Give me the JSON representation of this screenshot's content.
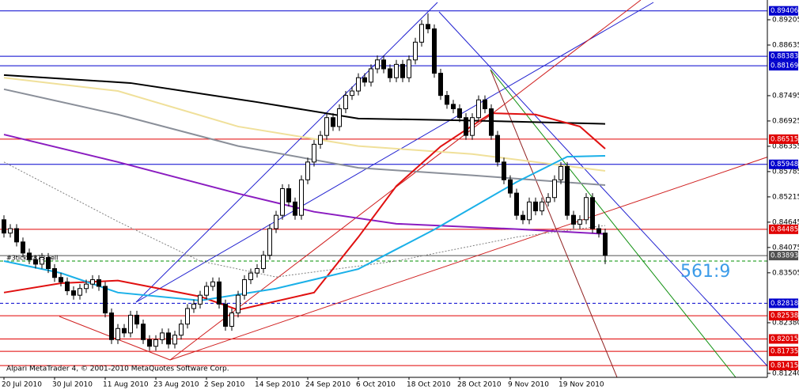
{
  "chart_data": {
    "type": "candlestick",
    "footer": "Alpari MetaTrader 4, © 2001-2010 MetaQuotes Software Corp.",
    "annotation": "561:9",
    "order_label": "#3ticket873 sell",
    "categories": [
      "20 Jul 2010",
      null,
      null,
      null,
      null,
      null,
      null,
      null,
      "30 Jul 2010",
      null,
      null,
      null,
      null,
      null,
      null,
      null,
      "11 Aug 2010",
      null,
      null,
      null,
      null,
      null,
      null,
      null,
      "23 Aug 2010",
      null,
      null,
      null,
      null,
      null,
      null,
      null,
      "2 Sep 2010",
      null,
      null,
      null,
      null,
      null,
      null,
      null,
      "14 Sep 2010",
      null,
      null,
      null,
      null,
      null,
      null,
      null,
      "24 Sep 2010",
      null,
      null,
      null,
      null,
      null,
      null,
      null,
      "6 Oct 2010",
      null,
      null,
      null,
      null,
      null,
      null,
      null,
      "18 Oct 2010",
      null,
      null,
      null,
      null,
      null,
      null,
      null,
      "28 Oct 2010",
      null,
      null,
      null,
      null,
      null,
      null,
      null,
      "9 Nov 2010",
      null,
      null,
      null,
      null,
      null,
      null,
      null,
      "19 Nov 2010",
      null,
      null,
      null,
      null,
      null,
      null,
      null
    ],
    "open": [
      0.847,
      0.844,
      0.845,
      0.842,
      0.8395,
      0.838,
      0.837,
      0.8385,
      0.836,
      0.834,
      0.833,
      0.831,
      0.83,
      0.8315,
      0.8325,
      0.8335,
      0.832,
      0.826,
      0.82,
      0.8225,
      0.8215,
      0.8255,
      0.8235,
      0.82,
      0.8185,
      0.82,
      0.8215,
      0.819,
      0.821,
      0.8235,
      0.827,
      0.828,
      0.83,
      0.832,
      0.833,
      0.828,
      0.823,
      0.826,
      0.83,
      0.8335,
      0.835,
      0.836,
      0.839,
      0.845,
      0.848,
      0.854,
      0.851,
      0.848,
      0.856,
      0.86,
      0.864,
      0.866,
      0.87,
      0.868,
      0.872,
      0.875,
      0.876,
      0.879,
      0.878,
      0.881,
      0.883,
      0.881,
      0.879,
      0.882,
      0.879,
      0.883,
      0.887,
      0.891,
      0.89,
      0.88,
      0.875,
      0.873,
      0.872,
      0.87,
      0.866,
      0.87,
      0.874,
      0.872,
      0.866,
      0.86,
      0.856,
      0.853,
      0.848,
      0.847,
      0.851,
      0.849,
      0.851,
      0.852,
      0.856,
      0.859,
      0.848,
      0.846,
      0.847,
      0.852,
      0.845,
      0.844
    ],
    "high": [
      0.848,
      0.846,
      0.846,
      0.843,
      0.8405,
      0.839,
      0.8395,
      0.8395,
      0.837,
      0.835,
      0.834,
      0.832,
      0.8325,
      0.8335,
      0.8345,
      0.8345,
      0.833,
      0.827,
      0.8235,
      0.8235,
      0.8265,
      0.8265,
      0.8245,
      0.821,
      0.821,
      0.8225,
      0.8225,
      0.822,
      0.8245,
      0.828,
      0.829,
      0.831,
      0.833,
      0.834,
      0.834,
      0.829,
      0.827,
      0.831,
      0.8345,
      0.836,
      0.837,
      0.84,
      0.846,
      0.849,
      0.855,
      0.855,
      0.852,
      0.857,
      0.861,
      0.865,
      0.867,
      0.871,
      0.871,
      0.873,
      0.876,
      0.877,
      0.88,
      0.88,
      0.882,
      0.884,
      0.884,
      0.882,
      0.883,
      0.883,
      0.884,
      0.888,
      0.892,
      0.8935,
      0.891,
      0.881,
      0.876,
      0.874,
      0.873,
      0.871,
      0.871,
      0.875,
      0.875,
      0.873,
      0.867,
      0.861,
      0.857,
      0.854,
      0.849,
      0.852,
      0.852,
      0.852,
      0.853,
      0.857,
      0.86,
      0.86,
      0.849,
      0.848,
      0.853,
      0.853,
      0.846,
      0.845
    ],
    "low": [
      0.843,
      0.843,
      0.841,
      0.8385,
      0.837,
      0.836,
      0.836,
      0.835,
      0.833,
      0.832,
      0.83,
      0.829,
      0.829,
      0.8305,
      0.8315,
      0.831,
      0.825,
      0.819,
      0.819,
      0.8205,
      0.8205,
      0.8225,
      0.819,
      0.8175,
      0.8175,
      0.819,
      0.818,
      0.818,
      0.82,
      0.8225,
      0.826,
      0.827,
      0.829,
      0.831,
      0.827,
      0.822,
      0.822,
      0.825,
      0.829,
      0.8325,
      0.834,
      0.835,
      0.838,
      0.844,
      0.847,
      0.85,
      0.847,
      0.847,
      0.855,
      0.859,
      0.863,
      0.865,
      0.867,
      0.867,
      0.871,
      0.874,
      0.875,
      0.877,
      0.877,
      0.88,
      0.88,
      0.878,
      0.878,
      0.878,
      0.878,
      0.882,
      0.886,
      0.889,
      0.879,
      0.874,
      0.872,
      0.871,
      0.869,
      0.865,
      0.865,
      0.869,
      0.871,
      0.865,
      0.859,
      0.855,
      0.852,
      0.847,
      0.846,
      0.846,
      0.848,
      0.848,
      0.85,
      0.851,
      0.855,
      0.847,
      0.845,
      0.845,
      0.846,
      0.844,
      0.843,
      0.837
    ],
    "close": [
      0.844,
      0.845,
      0.842,
      0.8395,
      0.838,
      0.837,
      0.8385,
      0.836,
      0.834,
      0.833,
      0.831,
      0.83,
      0.8315,
      0.8325,
      0.8335,
      0.832,
      0.826,
      0.82,
      0.8225,
      0.8215,
      0.8255,
      0.8235,
      0.82,
      0.8185,
      0.82,
      0.8215,
      0.819,
      0.821,
      0.8235,
      0.827,
      0.828,
      0.83,
      0.832,
      0.833,
      0.828,
      0.823,
      0.826,
      0.83,
      0.8335,
      0.835,
      0.836,
      0.839,
      0.845,
      0.848,
      0.854,
      0.851,
      0.848,
      0.856,
      0.86,
      0.864,
      0.866,
      0.87,
      0.868,
      0.872,
      0.875,
      0.876,
      0.879,
      0.878,
      0.881,
      0.883,
      0.881,
      0.879,
      0.882,
      0.879,
      0.883,
      0.887,
      0.891,
      0.89,
      0.88,
      0.875,
      0.873,
      0.872,
      0.87,
      0.866,
      0.87,
      0.874,
      0.872,
      0.866,
      0.86,
      0.856,
      0.853,
      0.848,
      0.847,
      0.851,
      0.849,
      0.851,
      0.852,
      0.856,
      0.859,
      0.848,
      0.846,
      0.847,
      0.852,
      0.845,
      0.844,
      0.839
    ],
    "indicators": [
      {
        "color": "#000000",
        "width": 2,
        "x": [
          0,
          20,
          40,
          56,
          72,
          95
        ],
        "values": [
          0.8796,
          0.8778,
          0.8735,
          0.8698,
          0.8694,
          0.8686
        ]
      },
      {
        "color": "#f0e09a",
        "width": 2,
        "x": [
          0,
          18,
          37,
          56,
          74,
          95
        ],
        "values": [
          0.879,
          0.876,
          0.868,
          0.8636,
          0.8618,
          0.858
        ]
      },
      {
        "color": "#8a8f99",
        "width": 2,
        "x": [
          0,
          18,
          37,
          56,
          74,
          95
        ],
        "values": [
          0.8764,
          0.8707,
          0.8636,
          0.8587,
          0.857,
          0.8548
        ]
      },
      {
        "color": "#8a1cc0",
        "width": 2,
        "x": [
          0,
          18,
          37,
          49,
          62,
          81,
          95
        ],
        "values": [
          0.8662,
          0.86,
          0.8529,
          0.8488,
          0.8461,
          0.8449,
          0.8438
        ]
      },
      {
        "color": "#808080",
        "width": 1,
        "dash": true,
        "x": [
          0,
          18,
          31,
          43,
          62,
          81,
          95
        ],
        "values": [
          0.86,
          0.8466,
          0.8377,
          0.8341,
          0.8377,
          0.8431,
          0.8457
        ]
      },
      {
        "color": "#e01010",
        "width": 2,
        "x": [
          0,
          9,
          18,
          31,
          37,
          49,
          56,
          62,
          69,
          77,
          84,
          91,
          95
        ],
        "values": [
          0.8306,
          0.8327,
          0.8333,
          0.8297,
          0.8267,
          0.8306,
          0.8431,
          0.8546,
          0.8635,
          0.871,
          0.8707,
          0.868,
          0.863
        ]
      },
      {
        "color": "#1ab0e8",
        "width": 2,
        "x": [
          0,
          9,
          18,
          31,
          43,
          56,
          68,
          81,
          89,
          95
        ],
        "values": [
          0.8377,
          0.835,
          0.8306,
          0.8288,
          0.8315,
          0.8359,
          0.8448,
          0.8555,
          0.8612,
          0.8614
        ]
      }
    ],
    "levels": [
      {
        "value": 0.89406,
        "label": "0.89406",
        "color": "#0000cd"
      },
      {
        "value": 0.88383,
        "label": "0.88383",
        "color": "#0000cd"
      },
      {
        "value": 0.88169,
        "label": "0.88169",
        "color": "#0000cd"
      },
      {
        "value": 0.86515,
        "label": "0.86515",
        "color": "#e00000"
      },
      {
        "value": 0.85948,
        "label": "0.85948",
        "color": "#0000cd"
      },
      {
        "value": 0.84485,
        "label": "0.84485",
        "color": "#e00000"
      },
      {
        "value": 0.83893,
        "label": "0.83893",
        "color": "#505050"
      },
      {
        "value": 0.8377,
        "color": "#009000",
        "dash": true
      },
      {
        "value": 0.82818,
        "label": "0.82818",
        "color": "#0000cd",
        "dash": true
      },
      {
        "value": 0.82538,
        "label": "0.82538",
        "color": "#e00000"
      },
      {
        "value": 0.82015,
        "label": "0.82015",
        "color": "#e00000"
      },
      {
        "value": 0.81735,
        "label": "0.81735",
        "color": "#e00000"
      },
      {
        "value": 0.81415,
        "label": "0.81415",
        "color": "#e00000"
      }
    ],
    "ylim": [
      0.8115,
      0.8965
    ],
    "yticks": [
      {
        "value": 0.89205,
        "label": "0.89205"
      },
      {
        "value": 0.88635,
        "label": "0.88635"
      },
      {
        "value": 0.87495,
        "label": "0.87495"
      },
      {
        "value": 0.86925,
        "label": "0.86925"
      },
      {
        "value": 0.86355,
        "label": "0.86355"
      },
      {
        "value": 0.85785,
        "label": "0.85785"
      },
      {
        "value": 0.85215,
        "label": "0.85215"
      },
      {
        "value": 0.84645,
        "label": "0.84645"
      },
      {
        "value": 0.84075,
        "label": "0.84075"
      },
      {
        "value": 0.83505,
        "label": "0.83505"
      },
      {
        "value": 0.8238,
        "label": "0.82380"
      },
      {
        "value": 0.8124,
        "label": "0.81240"
      }
    ]
  }
}
